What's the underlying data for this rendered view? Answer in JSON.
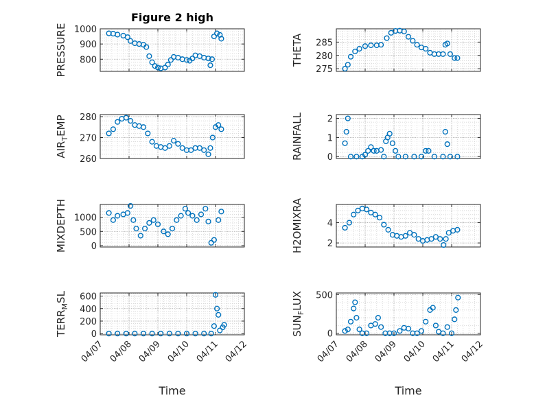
{
  "chart_data": {
    "title": "Figure 2 high",
    "type": "scatter",
    "marker_color": "#0072BD",
    "x_axis": {
      "label": "Time",
      "tick_labels": [
        "04/07",
        "04/08",
        "04/09",
        "04/10",
        "04/11",
        "04/12"
      ],
      "range_days": [
        7,
        12
      ]
    },
    "grid": "on (major + minor dotted)",
    "subplots": [
      {
        "id": "pressure",
        "ylabel": "PRESSURE",
        "ylim": [
          720,
          1000
        ],
        "yticks": [
          800,
          900,
          1000
        ],
        "points": [
          [
            7.3,
            970
          ],
          [
            7.45,
            968
          ],
          [
            7.6,
            962
          ],
          [
            7.8,
            955
          ],
          [
            7.95,
            945
          ],
          [
            8.05,
            920
          ],
          [
            8.2,
            905
          ],
          [
            8.35,
            900
          ],
          [
            8.5,
            895
          ],
          [
            8.6,
            880
          ],
          [
            8.7,
            820
          ],
          [
            8.8,
            780
          ],
          [
            8.9,
            755
          ],
          [
            9.0,
            745
          ],
          [
            9.1,
            740
          ],
          [
            9.25,
            745
          ],
          [
            9.35,
            765
          ],
          [
            9.45,
            795
          ],
          [
            9.55,
            815
          ],
          [
            9.7,
            810
          ],
          [
            9.85,
            800
          ],
          [
            10.0,
            795
          ],
          [
            10.1,
            790
          ],
          [
            10.2,
            805
          ],
          [
            10.3,
            825
          ],
          [
            10.45,
            820
          ],
          [
            10.6,
            810
          ],
          [
            10.75,
            805
          ],
          [
            10.82,
            760
          ],
          [
            10.88,
            800
          ],
          [
            10.95,
            950
          ],
          [
            11.05,
            970
          ],
          [
            11.15,
            960
          ],
          [
            11.2,
            935
          ]
        ]
      },
      {
        "id": "theta",
        "ylabel": "THETA",
        "ylim": [
          274,
          290
        ],
        "yticks": [
          275,
          280,
          285
        ],
        "points": [
          [
            7.3,
            275
          ],
          [
            7.4,
            276.5
          ],
          [
            7.5,
            279.5
          ],
          [
            7.65,
            281.5
          ],
          [
            7.8,
            282.5
          ],
          [
            8.0,
            283.5
          ],
          [
            8.2,
            283.8
          ],
          [
            8.4,
            283.8
          ],
          [
            8.55,
            284
          ],
          [
            8.75,
            286.5
          ],
          [
            8.9,
            288.5
          ],
          [
            9.05,
            289.2
          ],
          [
            9.2,
            289.3
          ],
          [
            9.35,
            289
          ],
          [
            9.5,
            287
          ],
          [
            9.65,
            285.5
          ],
          [
            9.8,
            284
          ],
          [
            9.95,
            283
          ],
          [
            10.1,
            282.5
          ],
          [
            10.25,
            281
          ],
          [
            10.4,
            280.5
          ],
          [
            10.55,
            280.5
          ],
          [
            10.7,
            280.5
          ],
          [
            10.78,
            284
          ],
          [
            10.85,
            284.5
          ],
          [
            10.95,
            280.5
          ],
          [
            11.1,
            279
          ],
          [
            11.2,
            279
          ]
        ]
      },
      {
        "id": "air_temp",
        "ylabel": "AIR_TEMP",
        "ylim": [
          260,
          281
        ],
        "yticks": [
          260,
          270,
          280
        ],
        "points": [
          [
            7.3,
            272
          ],
          [
            7.45,
            274
          ],
          [
            7.6,
            277.5
          ],
          [
            7.75,
            279
          ],
          [
            7.9,
            279.5
          ],
          [
            8.05,
            278
          ],
          [
            8.2,
            276
          ],
          [
            8.35,
            275.5
          ],
          [
            8.5,
            275
          ],
          [
            8.65,
            272
          ],
          [
            8.8,
            268
          ],
          [
            8.95,
            266
          ],
          [
            9.1,
            265.5
          ],
          [
            9.25,
            265
          ],
          [
            9.4,
            266
          ],
          [
            9.55,
            268.5
          ],
          [
            9.7,
            267
          ],
          [
            9.85,
            265
          ],
          [
            10.0,
            264
          ],
          [
            10.15,
            264
          ],
          [
            10.3,
            265
          ],
          [
            10.45,
            265
          ],
          [
            10.6,
            264
          ],
          [
            10.75,
            262
          ],
          [
            10.82,
            265
          ],
          [
            10.9,
            270
          ],
          [
            11.0,
            275
          ],
          [
            11.1,
            276
          ],
          [
            11.2,
            274
          ]
        ]
      },
      {
        "id": "rainfall",
        "ylabel": "RAINFALL",
        "ylim": [
          -0.1,
          2.2
        ],
        "yticks": [
          0,
          1,
          2
        ],
        "points": [
          [
            7.3,
            0.7
          ],
          [
            7.35,
            1.3
          ],
          [
            7.4,
            2.0
          ],
          [
            7.5,
            0
          ],
          [
            7.7,
            0
          ],
          [
            7.9,
            0
          ],
          [
            8.0,
            0.1
          ],
          [
            8.1,
            0.3
          ],
          [
            8.2,
            0.5
          ],
          [
            8.3,
            0.3
          ],
          [
            8.4,
            0.3
          ],
          [
            8.55,
            0.35
          ],
          [
            8.65,
            0
          ],
          [
            8.72,
            0.8
          ],
          [
            8.78,
            1.0
          ],
          [
            8.85,
            1.2
          ],
          [
            8.95,
            0.7
          ],
          [
            9.05,
            0.3
          ],
          [
            9.15,
            0
          ],
          [
            9.4,
            0
          ],
          [
            9.7,
            0
          ],
          [
            9.95,
            0
          ],
          [
            10.1,
            0.3
          ],
          [
            10.2,
            0.3
          ],
          [
            10.4,
            0
          ],
          [
            10.7,
            0
          ],
          [
            10.78,
            1.3
          ],
          [
            10.85,
            0.65
          ],
          [
            10.95,
            0
          ],
          [
            11.2,
            0
          ]
        ]
      },
      {
        "id": "mixdepth",
        "ylabel": "MIXDEPTH",
        "ylim": [
          -50,
          1450
        ],
        "yticks": [
          0,
          500,
          1000
        ],
        "points": [
          [
            7.3,
            1150
          ],
          [
            7.45,
            900
          ],
          [
            7.6,
            1050
          ],
          [
            7.8,
            1100
          ],
          [
            7.95,
            1150
          ],
          [
            8.05,
            1400
          ],
          [
            8.15,
            900
          ],
          [
            8.25,
            600
          ],
          [
            8.4,
            350
          ],
          [
            8.55,
            600
          ],
          [
            8.7,
            800
          ],
          [
            8.85,
            900
          ],
          [
            9.0,
            750
          ],
          [
            9.2,
            500
          ],
          [
            9.35,
            400
          ],
          [
            9.5,
            600
          ],
          [
            9.65,
            900
          ],
          [
            9.8,
            1050
          ],
          [
            9.95,
            1300
          ],
          [
            10.05,
            1150
          ],
          [
            10.2,
            1050
          ],
          [
            10.35,
            900
          ],
          [
            10.5,
            1100
          ],
          [
            10.65,
            1300
          ],
          [
            10.75,
            850
          ],
          [
            10.85,
            100
          ],
          [
            10.95,
            200
          ],
          [
            11.1,
            900
          ],
          [
            11.2,
            1200
          ]
        ]
      },
      {
        "id": "h2omixra",
        "ylabel": "H2OMIXRA",
        "ylim": [
          1.6,
          5.8
        ],
        "yticks": [
          2,
          4
        ],
        "points": [
          [
            7.3,
            3.5
          ],
          [
            7.45,
            4.0
          ],
          [
            7.6,
            4.8
          ],
          [
            7.75,
            5.2
          ],
          [
            7.9,
            5.4
          ],
          [
            8.05,
            5.3
          ],
          [
            8.2,
            5.0
          ],
          [
            8.35,
            4.8
          ],
          [
            8.5,
            4.5
          ],
          [
            8.65,
            3.8
          ],
          [
            8.8,
            3.3
          ],
          [
            8.95,
            2.8
          ],
          [
            9.1,
            2.7
          ],
          [
            9.25,
            2.6
          ],
          [
            9.4,
            2.7
          ],
          [
            9.55,
            3.0
          ],
          [
            9.7,
            2.8
          ],
          [
            9.85,
            2.4
          ],
          [
            10.0,
            2.2
          ],
          [
            10.15,
            2.3
          ],
          [
            10.3,
            2.4
          ],
          [
            10.45,
            2.6
          ],
          [
            10.6,
            2.4
          ],
          [
            10.72,
            1.8
          ],
          [
            10.8,
            2.4
          ],
          [
            10.9,
            3.0
          ],
          [
            11.05,
            3.2
          ],
          [
            11.2,
            3.3
          ]
        ]
      },
      {
        "id": "terr_msl",
        "ylabel": "TERR_MSL",
        "ylim": [
          -20,
          650
        ],
        "yticks": [
          0,
          200,
          400,
          600
        ],
        "points": [
          [
            7.3,
            0
          ],
          [
            7.6,
            0
          ],
          [
            7.9,
            0
          ],
          [
            8.2,
            0
          ],
          [
            8.5,
            0
          ],
          [
            8.8,
            0
          ],
          [
            9.1,
            0
          ],
          [
            9.4,
            0
          ],
          [
            9.7,
            0
          ],
          [
            10.0,
            0
          ],
          [
            10.3,
            0
          ],
          [
            10.6,
            0
          ],
          [
            10.85,
            0
          ],
          [
            10.95,
            120
          ],
          [
            11.0,
            620
          ],
          [
            11.05,
            400
          ],
          [
            11.1,
            300
          ],
          [
            11.15,
            50
          ],
          [
            11.25,
            100
          ],
          [
            11.3,
            140
          ]
        ]
      },
      {
        "id": "sun_flux",
        "ylabel": "SUN_FLUX",
        "ylim": [
          -20,
          520
        ],
        "yticks": [
          0,
          500
        ],
        "points": [
          [
            7.3,
            30
          ],
          [
            7.4,
            50
          ],
          [
            7.5,
            150
          ],
          [
            7.6,
            320
          ],
          [
            7.65,
            400
          ],
          [
            7.7,
            200
          ],
          [
            7.8,
            50
          ],
          [
            7.9,
            0
          ],
          [
            8.05,
            0
          ],
          [
            8.2,
            100
          ],
          [
            8.35,
            120
          ],
          [
            8.45,
            200
          ],
          [
            8.55,
            80
          ],
          [
            8.7,
            0
          ],
          [
            8.85,
            0
          ],
          [
            9.0,
            0
          ],
          [
            9.2,
            30
          ],
          [
            9.35,
            70
          ],
          [
            9.5,
            60
          ],
          [
            9.65,
            0
          ],
          [
            9.8,
            0
          ],
          [
            9.95,
            30
          ],
          [
            10.1,
            150
          ],
          [
            10.25,
            300
          ],
          [
            10.35,
            330
          ],
          [
            10.45,
            100
          ],
          [
            10.55,
            20
          ],
          [
            10.7,
            0
          ],
          [
            10.85,
            80
          ],
          [
            11.0,
            0
          ],
          [
            11.1,
            180
          ],
          [
            11.15,
            300
          ],
          [
            11.22,
            460
          ]
        ]
      }
    ]
  }
}
